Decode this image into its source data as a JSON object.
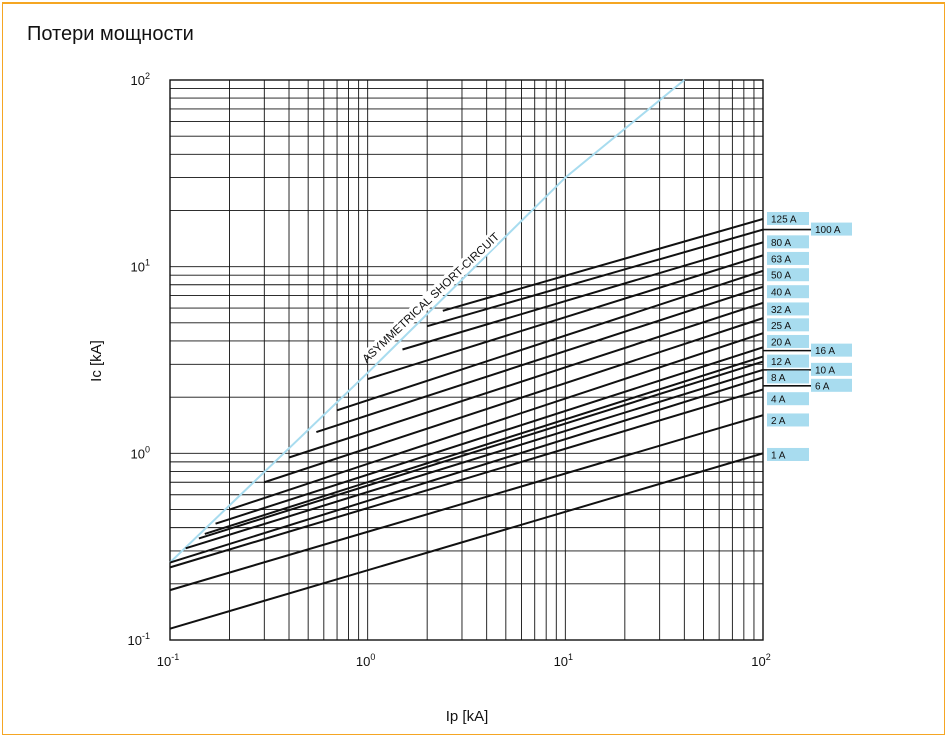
{
  "title": "Потери мощности",
  "colors": {
    "frame": "#f5a623",
    "label_bg": "#a8dcef",
    "asym_line": "#a8dcef",
    "curve": "#111111",
    "grid": "#111111"
  },
  "chart_data": {
    "type": "line",
    "title": "Потери мощности",
    "xlabel": "Ip [kA]",
    "ylabel": "Ic [kA]",
    "x_scale": "log",
    "y_scale": "log",
    "xlim": [
      0.1,
      100
    ],
    "ylim": [
      0.1,
      100
    ],
    "grid": true,
    "x_ticks": [
      {
        "base": "10",
        "exp": "-1"
      },
      {
        "base": "10",
        "exp": "0"
      },
      {
        "base": "10",
        "exp": "1"
      },
      {
        "base": "10",
        "exp": "2"
      }
    ],
    "y_ticks": [
      {
        "base": "10",
        "exp": "-1"
      },
      {
        "base": "10",
        "exp": "0"
      },
      {
        "base": "10",
        "exp": "1"
      },
      {
        "base": "10",
        "exp": "2"
      }
    ],
    "asymmetrical": {
      "label": "ASYMMETRICAL SHORT-CIRCUIT",
      "points": [
        [
          0.1,
          0.26
        ],
        [
          1,
          2.7
        ],
        [
          10,
          30
        ],
        [
          40,
          100
        ]
      ]
    },
    "series": [
      {
        "name": "1 A",
        "start": [
          0.1,
          0.115
        ],
        "end": [
          100,
          1.0
        ]
      },
      {
        "name": "2 A",
        "start": [
          0.1,
          0.185
        ],
        "end": [
          100,
          1.6
        ]
      },
      {
        "name": "4 A",
        "start": [
          0.1,
          0.245
        ],
        "end": [
          100,
          2.2
        ]
      },
      {
        "name": "6 A",
        "start": [
          0.1,
          0.26
        ],
        "end": [
          100,
          2.55
        ]
      },
      {
        "name": "8 A",
        "start": [
          0.12,
          0.31
        ],
        "end": [
          100,
          2.8
        ]
      },
      {
        "name": "10 A",
        "start": [
          0.14,
          0.35
        ],
        "end": [
          100,
          3.1
        ]
      },
      {
        "name": "12 A",
        "start": [
          0.15,
          0.37
        ],
        "end": [
          100,
          3.3
        ]
      },
      {
        "name": "16 A",
        "start": [
          0.17,
          0.42
        ],
        "end": [
          100,
          3.7
        ]
      },
      {
        "name": "20 A",
        "start": [
          0.2,
          0.5
        ],
        "end": [
          100,
          4.4
        ]
      },
      {
        "name": "25 A",
        "start": [
          0.3,
          0.7
        ],
        "end": [
          100,
          5.3
        ]
      },
      {
        "name": "32 A",
        "start": [
          0.4,
          0.95
        ],
        "end": [
          100,
          6.4
        ]
      },
      {
        "name": "40 A",
        "start": [
          0.55,
          1.3
        ],
        "end": [
          100,
          7.8
        ]
      },
      {
        "name": "50 A",
        "start": [
          0.7,
          1.7
        ],
        "end": [
          100,
          9.5
        ]
      },
      {
        "name": "63 A",
        "start": [
          1.0,
          2.5
        ],
        "end": [
          100,
          11.5
        ]
      },
      {
        "name": "80 A",
        "start": [
          1.5,
          3.6
        ],
        "end": [
          100,
          13.5
        ]
      },
      {
        "name": "100 A",
        "start": [
          2.0,
          4.8
        ],
        "end": [
          100,
          15.8
        ]
      },
      {
        "name": "125 A",
        "start": [
          2.4,
          5.8
        ],
        "end": [
          100,
          18.0
        ]
      }
    ],
    "legend_labels": [
      {
        "name": "125 A",
        "column": 1,
        "y": 18.0
      },
      {
        "name": "100 A",
        "column": 2,
        "y": 15.8
      },
      {
        "name": "80 A",
        "column": 1,
        "y": 13.5
      },
      {
        "name": "63 A",
        "column": 1,
        "y": 11.0
      },
      {
        "name": "50 A",
        "column": 1,
        "y": 9.0
      },
      {
        "name": "40 A",
        "column": 1,
        "y": 7.3
      },
      {
        "name": "32 A",
        "column": 1,
        "y": 5.9
      },
      {
        "name": "25 A",
        "column": 1,
        "y": 4.85
      },
      {
        "name": "20 A",
        "column": 1,
        "y": 3.95
      },
      {
        "name": "16 A",
        "column": 2,
        "y": 3.55
      },
      {
        "name": "12 A",
        "column": 1,
        "y": 3.1
      },
      {
        "name": "10 A",
        "column": 2,
        "y": 2.8
      },
      {
        "name": "8 A",
        "column": 1,
        "y": 2.55
      },
      {
        "name": "6 A",
        "column": 2,
        "y": 2.3
      },
      {
        "name": "4 A",
        "column": 1,
        "y": 1.95
      },
      {
        "name": "2 A",
        "column": 1,
        "y": 1.5
      },
      {
        "name": "1 A",
        "column": 1,
        "y": 0.98
      }
    ]
  }
}
